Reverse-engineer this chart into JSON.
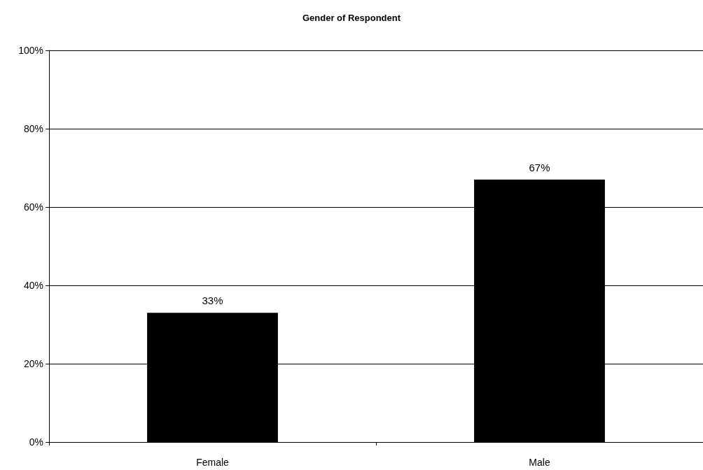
{
  "chart_data": {
    "type": "bar",
    "title": "Gender of Respondent",
    "categories": [
      "Female",
      "Male"
    ],
    "values": [
      33,
      67
    ],
    "color": "#000000",
    "value_labels": [
      "33%",
      "67%"
    ],
    "ylim": [
      0,
      100
    ],
    "yticks": [
      {
        "value": 0,
        "label": "0%"
      },
      {
        "value": 20,
        "label": "20%"
      },
      {
        "value": 40,
        "label": "40%"
      },
      {
        "value": 60,
        "label": "60%"
      },
      {
        "value": 80,
        "label": "80%"
      },
      {
        "value": 100,
        "label": "100%"
      }
    ],
    "grid": "y"
  }
}
